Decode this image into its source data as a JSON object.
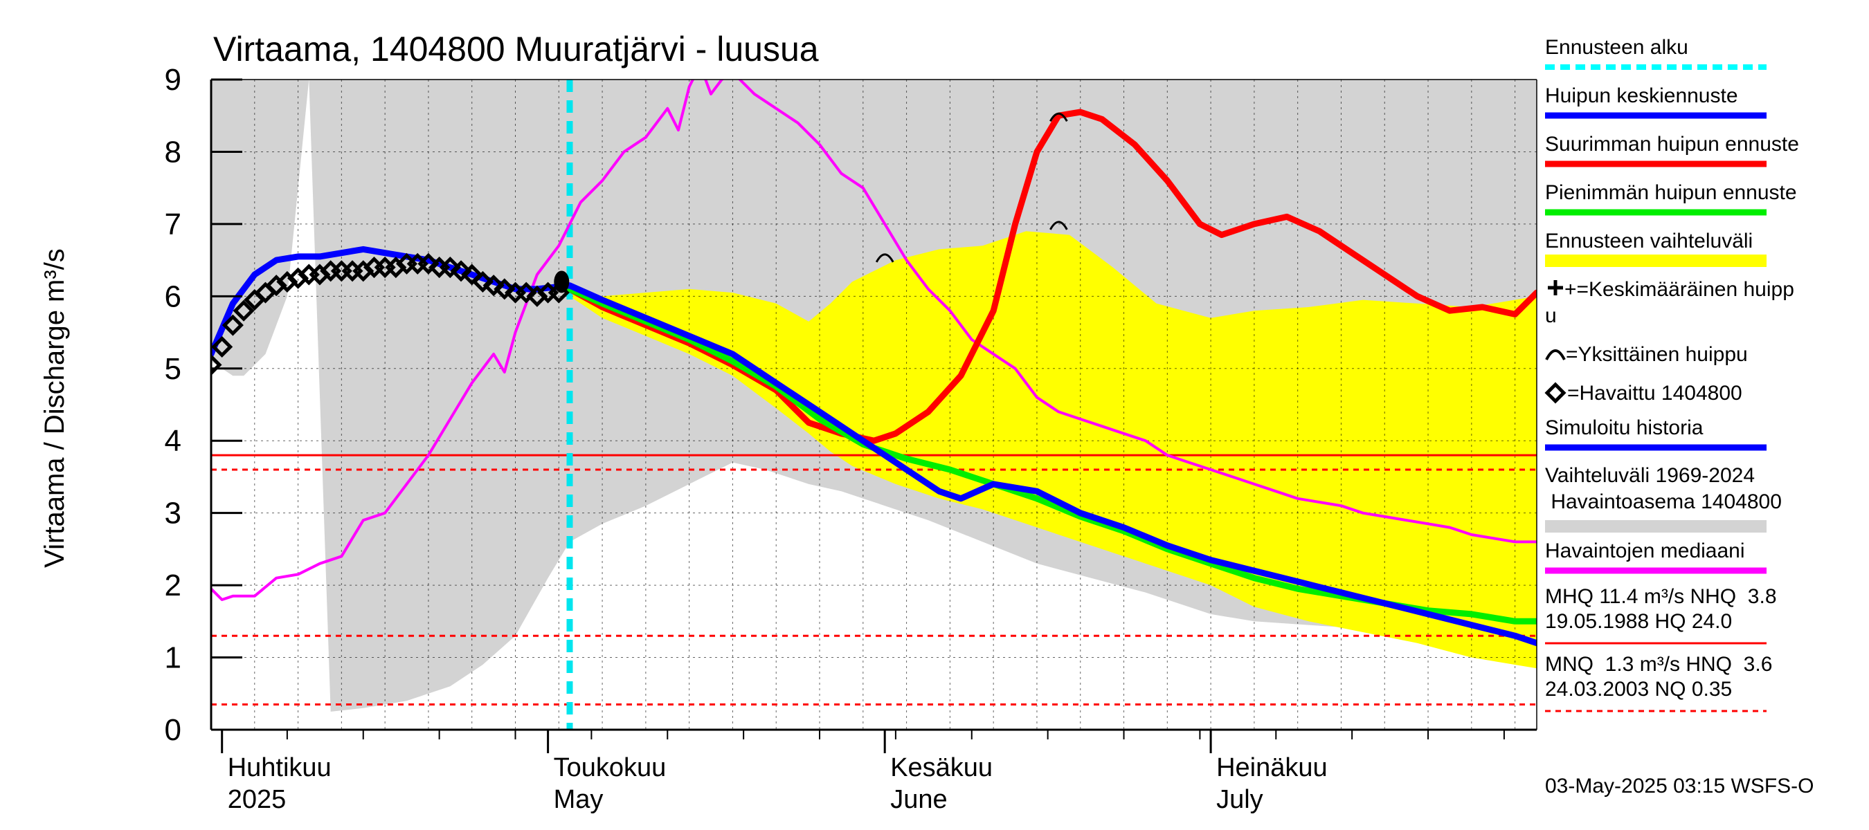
{
  "chart_data": {
    "type": "line",
    "title": "Virtaama, 1404800 Muuratjärvi - luusua",
    "ylabel": "Virtaama / Discharge    m³/s",
    "ylim": [
      0,
      9
    ],
    "yticks": [
      "0",
      "1",
      "2",
      "3",
      "4",
      "5",
      "6",
      "7",
      "8",
      "9"
    ],
    "x_range": [
      "2025-03-31",
      "2025-07-31"
    ],
    "month_labels": [
      {
        "top": "Huhtikuu",
        "bottom": "2025",
        "date": "2025-04-01"
      },
      {
        "top": "Toukokuu",
        "bottom": "May",
        "date": "2025-05-01"
      },
      {
        "top": "Kesäkuu",
        "bottom": "June",
        "date": "2025-06-01"
      },
      {
        "top": "Heinäkuu",
        "bottom": "July",
        "date": "2025-07-01"
      }
    ],
    "forecast_start": "2025-05-03",
    "reference_lines": [
      {
        "label": "NHQ",
        "value": 3.8,
        "style": "solid",
        "color": "#ff0000"
      },
      {
        "label": "HNQ",
        "value": 3.6,
        "style": "dashed",
        "color": "#ff0000"
      },
      {
        "label": "MNQ",
        "value": 1.3,
        "style": "dashed",
        "color": "#ff0000"
      },
      {
        "label": "NQ",
        "value": 0.35,
        "style": "dashed",
        "color": "#ff0000"
      }
    ],
    "history_band": {
      "name": "Vaihteluväli 1969-2024 Havaintoasema 1404800",
      "color": "#d3d3d3",
      "x": [
        "2025-03-31",
        "2025-04-02",
        "2025-04-03",
        "2025-04-05",
        "2025-04-07",
        "2025-04-09",
        "2025-04-11",
        "2025-04-14",
        "2025-04-18",
        "2025-04-22",
        "2025-04-25",
        "2025-04-28",
        "2025-05-01",
        "2025-05-03",
        "2025-05-06",
        "2025-05-10",
        "2025-05-14",
        "2025-05-18",
        "2025-05-21",
        "2025-05-23",
        "2025-05-25",
        "2025-05-28",
        "2025-06-01",
        "2025-06-05",
        "2025-06-10",
        "2025-06-15",
        "2025-06-20",
        "2025-06-25",
        "2025-07-01",
        "2025-07-05",
        "2025-07-10",
        "2025-07-15",
        "2025-07-20",
        "2025-07-25",
        "2025-07-31"
      ],
      "upper": [
        9.0,
        9.0,
        9.0,
        9.0,
        9.0,
        9.0,
        9.0,
        9.0,
        9.0,
        9.0,
        9.0,
        9.0,
        9.0,
        9.0,
        9.0,
        9.0,
        9.0,
        9.0,
        9.0,
        9.0,
        9.0,
        9.0,
        9.0,
        9.0,
        9.0,
        9.0,
        9.0,
        9.0,
        9.0,
        9.0,
        9.0,
        9.0,
        9.0,
        9.0,
        9.0
      ],
      "lower": [
        5.1,
        4.9,
        4.9,
        5.2,
        6.0,
        9.0,
        0.25,
        0.3,
        0.4,
        0.6,
        0.9,
        1.3,
        2.1,
        2.6,
        2.85,
        3.1,
        3.4,
        3.7,
        3.6,
        3.5,
        3.4,
        3.3,
        3.1,
        2.9,
        2.6,
        2.3,
        2.1,
        1.9,
        1.6,
        1.5,
        1.45,
        1.4,
        1.35,
        1.3,
        1.3
      ]
    },
    "series": [
      {
        "name": "Ennusteen vaihteluväli",
        "kind": "band",
        "color": "#ffff00",
        "x": [
          "2025-05-03",
          "2025-05-06",
          "2025-05-10",
          "2025-05-14",
          "2025-05-18",
          "2025-05-22",
          "2025-05-25",
          "2025-05-27",
          "2025-05-29",
          "2025-06-02",
          "2025-06-06",
          "2025-06-10",
          "2025-06-14",
          "2025-06-18",
          "2025-06-22",
          "2025-06-26",
          "2025-07-01",
          "2025-07-05",
          "2025-07-10",
          "2025-07-15",
          "2025-07-20",
          "2025-07-25",
          "2025-07-31"
        ],
        "upper": [
          6.1,
          6.0,
          6.05,
          6.1,
          6.05,
          5.9,
          5.65,
          5.9,
          6.2,
          6.5,
          6.65,
          6.7,
          6.9,
          6.85,
          6.4,
          5.9,
          5.7,
          5.8,
          5.85,
          5.95,
          5.9,
          5.85,
          6.0
        ],
        "lower": [
          6.0,
          5.7,
          5.45,
          5.2,
          4.9,
          4.45,
          4.1,
          3.85,
          3.65,
          3.4,
          3.2,
          3.05,
          2.85,
          2.65,
          2.45,
          2.25,
          2.0,
          1.7,
          1.5,
          1.35,
          1.2,
          1.0,
          0.85
        ]
      },
      {
        "name": "Havaintojen mediaani",
        "color": "#ff00ff",
        "x": [
          "2025-03-31",
          "2025-04-01",
          "2025-04-02",
          "2025-04-04",
          "2025-04-06",
          "2025-04-08",
          "2025-04-10",
          "2025-04-12",
          "2025-04-14",
          "2025-04-16",
          "2025-04-18",
          "2025-04-20",
          "2025-04-22",
          "2025-04-24",
          "2025-04-26",
          "2025-04-27",
          "2025-04-28",
          "2025-04-30",
          "2025-05-02",
          "2025-05-04",
          "2025-05-06",
          "2025-05-08",
          "2025-05-10",
          "2025-05-12",
          "2025-05-13",
          "2025-05-14",
          "2025-05-15",
          "2025-05-16",
          "2025-05-17",
          "2025-05-18",
          "2025-05-20",
          "2025-05-22",
          "2025-05-24",
          "2025-05-26",
          "2025-05-28",
          "2025-05-30",
          "2025-06-01",
          "2025-06-03",
          "2025-06-05",
          "2025-06-07",
          "2025-06-09",
          "2025-06-11",
          "2025-06-13",
          "2025-06-15",
          "2025-06-17",
          "2025-06-19",
          "2025-06-21",
          "2025-06-23",
          "2025-06-25",
          "2025-06-27",
          "2025-06-29",
          "2025-07-01",
          "2025-07-03",
          "2025-07-05",
          "2025-07-07",
          "2025-07-09",
          "2025-07-11",
          "2025-07-13",
          "2025-07-15",
          "2025-07-17",
          "2025-07-19",
          "2025-07-21",
          "2025-07-23",
          "2025-07-25",
          "2025-07-27",
          "2025-07-29",
          "2025-07-31"
        ],
        "values": [
          1.95,
          1.8,
          1.85,
          1.85,
          2.1,
          2.15,
          2.3,
          2.4,
          2.9,
          3.0,
          3.4,
          3.8,
          4.3,
          4.8,
          5.2,
          4.95,
          5.5,
          6.3,
          6.7,
          7.3,
          7.6,
          8.0,
          8.2,
          8.6,
          8.3,
          8.9,
          9.2,
          8.8,
          9.0,
          9.1,
          8.8,
          8.6,
          8.4,
          8.1,
          7.7,
          7.5,
          7.0,
          6.5,
          6.1,
          5.8,
          5.4,
          5.2,
          5.0,
          4.6,
          4.4,
          4.3,
          4.2,
          4.1,
          4.0,
          3.8,
          3.7,
          3.6,
          3.5,
          3.4,
          3.3,
          3.2,
          3.15,
          3.1,
          3.0,
          2.95,
          2.9,
          2.85,
          2.8,
          2.7,
          2.65,
          2.6,
          2.6
        ]
      },
      {
        "name": "Suurimman huipun ennuste",
        "color": "#ff0000",
        "x": [
          "2025-05-03",
          "2025-05-06",
          "2025-05-10",
          "2025-05-14",
          "2025-05-18",
          "2025-05-22",
          "2025-05-25",
          "2025-05-28",
          "2025-05-31",
          "2025-06-02",
          "2025-06-05",
          "2025-06-08",
          "2025-06-11",
          "2025-06-13",
          "2025-06-15",
          "2025-06-17",
          "2025-06-19",
          "2025-06-21",
          "2025-06-24",
          "2025-06-27",
          "2025-06-30",
          "2025-07-02",
          "2025-07-05",
          "2025-07-08",
          "2025-07-11",
          "2025-07-14",
          "2025-07-17",
          "2025-07-20",
          "2025-07-23",
          "2025-07-26",
          "2025-07-29",
          "2025-07-31"
        ],
        "values": [
          6.1,
          5.85,
          5.6,
          5.35,
          5.05,
          4.7,
          4.25,
          4.1,
          4.0,
          4.1,
          4.4,
          4.9,
          5.8,
          7.0,
          8.0,
          8.5,
          8.55,
          8.45,
          8.1,
          7.6,
          7.0,
          6.85,
          7.0,
          7.1,
          6.9,
          6.6,
          6.3,
          6.0,
          5.8,
          5.85,
          5.75,
          6.05
        ]
      },
      {
        "name": "Pienimmän huipun ennuste",
        "color": "#00ee00",
        "x": [
          "2025-05-03",
          "2025-05-06",
          "2025-05-10",
          "2025-05-14",
          "2025-05-18",
          "2025-05-22",
          "2025-05-26",
          "2025-05-30",
          "2025-06-03",
          "2025-06-07",
          "2025-06-11",
          "2025-06-15",
          "2025-06-19",
          "2025-06-23",
          "2025-06-27",
          "2025-07-01",
          "2025-07-05",
          "2025-07-09",
          "2025-07-13",
          "2025-07-17",
          "2025-07-21",
          "2025-07-25",
          "2025-07-29",
          "2025-07-31"
        ],
        "values": [
          6.1,
          5.9,
          5.65,
          5.4,
          5.1,
          4.75,
          4.3,
          3.95,
          3.75,
          3.6,
          3.4,
          3.2,
          2.95,
          2.75,
          2.5,
          2.3,
          2.1,
          1.95,
          1.85,
          1.75,
          1.65,
          1.6,
          1.5,
          1.5
        ]
      },
      {
        "name": "Huipun keskiennuste",
        "color": "#0000ff",
        "x": [
          "2025-03-31",
          "2025-04-02",
          "2025-04-04",
          "2025-04-06",
          "2025-04-08",
          "2025-04-10",
          "2025-04-12",
          "2025-04-14",
          "2025-04-16",
          "2025-04-18",
          "2025-04-20",
          "2025-04-22",
          "2025-04-24",
          "2025-04-26",
          "2025-04-28",
          "2025-04-30",
          "2025-05-03",
          "2025-05-06",
          "2025-05-10",
          "2025-05-14",
          "2025-05-18",
          "2025-05-22",
          "2025-05-26",
          "2025-05-30",
          "2025-06-03",
          "2025-06-06",
          "2025-06-08",
          "2025-06-11",
          "2025-06-15",
          "2025-06-19",
          "2025-06-23",
          "2025-06-27",
          "2025-07-01",
          "2025-07-05",
          "2025-07-09",
          "2025-07-13",
          "2025-07-17",
          "2025-07-21",
          "2025-07-25",
          "2025-07-29",
          "2025-07-31"
        ],
        "values": [
          5.2,
          5.9,
          6.3,
          6.5,
          6.55,
          6.55,
          6.6,
          6.65,
          6.6,
          6.55,
          6.5,
          6.4,
          6.3,
          6.2,
          6.1,
          6.1,
          6.15,
          5.95,
          5.7,
          5.45,
          5.2,
          4.8,
          4.4,
          4.0,
          3.6,
          3.3,
          3.2,
          3.4,
          3.3,
          3.0,
          2.8,
          2.55,
          2.35,
          2.2,
          2.05,
          1.9,
          1.75,
          1.6,
          1.45,
          1.3,
          1.2
        ]
      },
      {
        "name": "Havaittu 1404800",
        "kind": "markers",
        "color": "#000000",
        "x": [
          "2025-03-31",
          "2025-04-01",
          "2025-04-02",
          "2025-04-03",
          "2025-04-04",
          "2025-04-05",
          "2025-04-06",
          "2025-04-07",
          "2025-04-08",
          "2025-04-09",
          "2025-04-10",
          "2025-04-11",
          "2025-04-12",
          "2025-04-13",
          "2025-04-14",
          "2025-04-15",
          "2025-04-16",
          "2025-04-17",
          "2025-04-18",
          "2025-04-19",
          "2025-04-20",
          "2025-04-21",
          "2025-04-22",
          "2025-04-23",
          "2025-04-24",
          "2025-04-25",
          "2025-04-26",
          "2025-04-27",
          "2025-04-28",
          "2025-04-29",
          "2025-04-30",
          "2025-05-01",
          "2025-05-02"
        ],
        "values": [
          5.05,
          5.3,
          5.6,
          5.8,
          5.95,
          6.05,
          6.15,
          6.2,
          6.25,
          6.3,
          6.3,
          6.35,
          6.35,
          6.35,
          6.35,
          6.4,
          6.4,
          6.4,
          6.45,
          6.45,
          6.45,
          6.4,
          6.4,
          6.35,
          6.3,
          6.2,
          6.15,
          6.1,
          6.05,
          6.05,
          6.0,
          6.05,
          6.05
        ]
      }
    ],
    "peak_marks": [
      {
        "date": "2025-06-01",
        "value": 6.55
      },
      {
        "date": "2025-06-17",
        "value": 8.5
      },
      {
        "date": "2025-06-17",
        "value": 7.0
      }
    ],
    "legend_position": "right",
    "legend": [
      {
        "label": "Ennusteen alku",
        "color": "#00ffff",
        "style": "dashed"
      },
      {
        "label": "Huipun keskiennuste",
        "color": "#0000ff",
        "style": "line"
      },
      {
        "label": "Suurimman huipun ennuste",
        "color": "#ff0000",
        "style": "line"
      },
      {
        "label": "Pienimmän huipun ennuste",
        "color": "#00ee00",
        "style": "line"
      },
      {
        "label": "Ennusteen vaihteluväli",
        "color": "#ffff00",
        "style": "band"
      },
      {
        "label": "+=Keskimääräinen huipp",
        "label2": "u",
        "style": "text"
      },
      {
        "label": "=Yksittäinen huippu",
        "style": "text"
      },
      {
        "label": "=Havaittu 1404800",
        "style": "text"
      },
      {
        "label": "Simuloitu historia",
        "color": "#0000ff",
        "style": "line"
      },
      {
        "label": "Vaihteluväli 1969-2024",
        "label2": " Havaintoasema 1404800",
        "color": "#d3d3d3",
        "style": "band"
      },
      {
        "label": "Havaintojen mediaani",
        "color": "#ff00ff",
        "style": "line"
      }
    ],
    "stats": [
      {
        "line1": "MHQ 11.4 m³/s NHQ  3.8",
        "line2": "19.05.1988 HQ 24.0",
        "color": "#ff0000",
        "style": "solid"
      },
      {
        "line1": "MNQ  1.3 m³/s HNQ  3.6",
        "line2": "24.03.2003 NQ 0.35",
        "color": "#ff0000",
        "style": "dashed"
      }
    ],
    "footer": "03-May-2025 03:15 WSFS-O"
  }
}
